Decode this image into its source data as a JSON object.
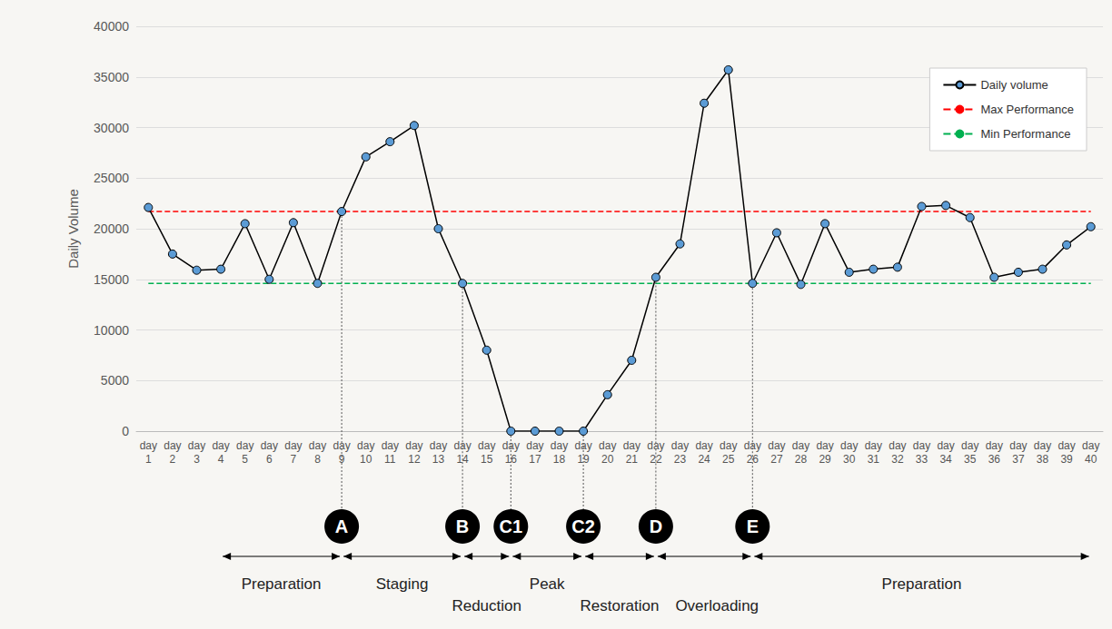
{
  "chart_data": {
    "type": "line",
    "y_label": "Daily Volume",
    "categories": [
      "day 1",
      "day 2",
      "day 3",
      "day 4",
      "day 5",
      "day 6",
      "day 7",
      "day 8",
      "day 9",
      "day 10",
      "day 11",
      "day 12",
      "day 13",
      "day 14",
      "day 15",
      "day 16",
      "day 17",
      "day 18",
      "day 19",
      "day 20",
      "day 21",
      "day 22",
      "day 23",
      "day 24",
      "day 25",
      "day 26",
      "day 27",
      "day 28",
      "day 29",
      "day 30",
      "day 31",
      "day 32",
      "day 33",
      "day 34",
      "day 35",
      "day 36",
      "day 37",
      "day 38",
      "day 39",
      "day 40"
    ],
    "ylim": [
      0,
      40000
    ],
    "yticks": [
      0,
      5000,
      10000,
      15000,
      20000,
      25000,
      30000,
      35000,
      40000
    ],
    "grid": true,
    "legend": "upper right",
    "series": [
      {
        "name": "Daily volume",
        "color": "#000000",
        "marker": "circle",
        "line_style": "solid",
        "values": [
          22100,
          17500,
          15900,
          16000,
          20500,
          15000,
          20600,
          14600,
          21700,
          27100,
          28600,
          30200,
          20000,
          14600,
          8000,
          0,
          0,
          0,
          0,
          3600,
          7000,
          15200,
          18500,
          32400,
          35700,
          14600,
          19600,
          14500,
          20500,
          15700,
          16000,
          16200,
          22200,
          22300,
          21100,
          15200,
          15700,
          16000,
          18400,
          20200
        ]
      },
      {
        "name": "Max Performance",
        "color": "#ff0000",
        "marker": "none",
        "line_style": "dashed",
        "values": [
          21700,
          21700,
          21700,
          21700,
          21700,
          21700,
          21700,
          21700,
          21700,
          21700,
          21700,
          21700,
          21700,
          21700,
          21700,
          21700,
          21700,
          21700,
          21700,
          21700,
          21700,
          21700,
          21700,
          21700,
          21700,
          21700,
          21700,
          21700,
          21700,
          21700,
          21700,
          21700,
          21700,
          21700,
          21700,
          21700,
          21700,
          21700,
          21700,
          21700
        ]
      },
      {
        "name": "Min Performance",
        "color": "#00b050",
        "marker": "none",
        "line_style": "dashed",
        "values": [
          14600,
          14600,
          14600,
          14600,
          14600,
          14600,
          14600,
          14600,
          14600,
          14600,
          14600,
          14600,
          14600,
          14600,
          14600,
          14600,
          14600,
          14600,
          14600,
          14600,
          14600,
          14600,
          14600,
          14600,
          14600,
          14600,
          14600,
          14600,
          14600,
          14600,
          14600,
          14600,
          14600,
          14600,
          14600,
          14600,
          14600,
          14600,
          14600,
          14600
        ]
      }
    ],
    "markers": [
      {
        "label": "A",
        "category": "day 9"
      },
      {
        "label": "B",
        "category": "day 14"
      },
      {
        "label": "C1",
        "category": "day 16"
      },
      {
        "label": "C2",
        "category": "day 19"
      },
      {
        "label": "D",
        "category": "day 22"
      },
      {
        "label": "E",
        "category": "day 26"
      }
    ],
    "phases": [
      {
        "label": "Preparation",
        "from": "day 4",
        "to": "day 9"
      },
      {
        "label": "Staging",
        "from": "day 9",
        "to": "day 14"
      },
      {
        "label": "Reduction",
        "from": "day 14",
        "to": "day 16"
      },
      {
        "label": "Peak",
        "from": "day 16",
        "to": "day 19"
      },
      {
        "label": "Restoration",
        "from": "day 19",
        "to": "day 22"
      },
      {
        "label": "Overloading",
        "from": "day 22",
        "to": "day 26"
      },
      {
        "label": "Preparation",
        "from": "day 26",
        "to": "day 40"
      }
    ]
  }
}
